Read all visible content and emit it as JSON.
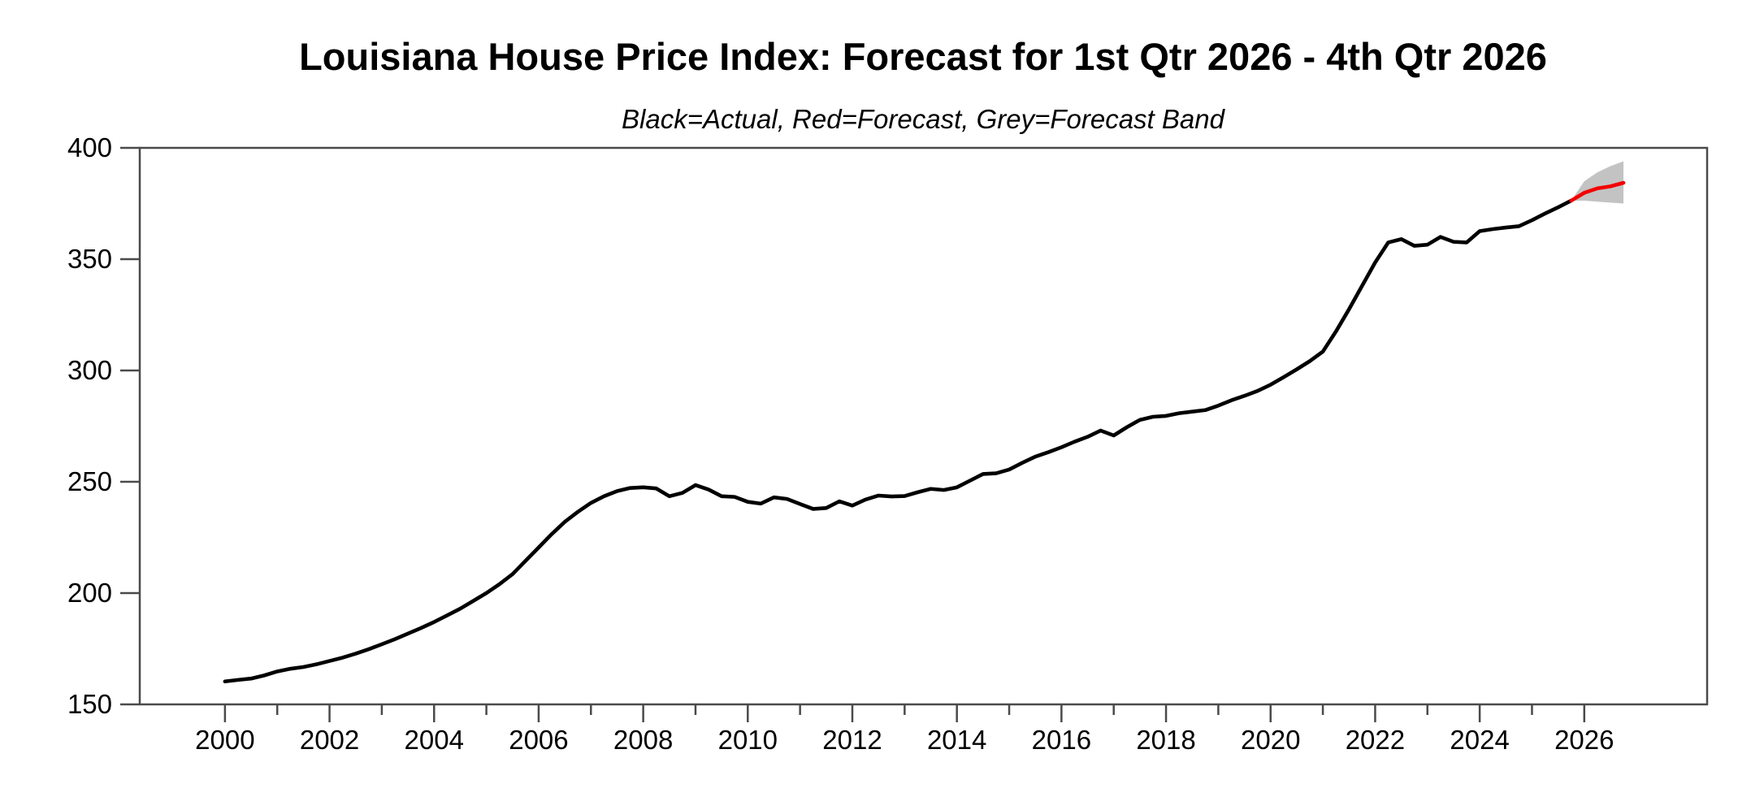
{
  "chart_data": {
    "type": "line",
    "title": "Louisiana House Price Index: Forecast for 1st Qtr 2026 - 4th Qtr 2026",
    "subtitle": "Black=Actual, Red=Forecast, Grey=Forecast Band",
    "legend_meaning": {
      "black": "Actual",
      "red": "Forecast",
      "grey": "Forecast Band"
    },
    "colors": {
      "actual": "#000000",
      "forecast": "#f40000",
      "band": "#c3c3c3",
      "axis": "#4a4a4a",
      "background": "#ffffff"
    },
    "grid": false,
    "x_axis": {
      "min": 1998.37,
      "max": 2028.35,
      "major_ticks": [
        2000,
        2002,
        2004,
        2006,
        2008,
        2010,
        2012,
        2014,
        2016,
        2018,
        2020,
        2022,
        2024,
        2026
      ],
      "major_labels": [
        "2000",
        "2002",
        "2004",
        "2006",
        "2008",
        "2010",
        "2012",
        "2014",
        "2016",
        "2018",
        "2020",
        "2022",
        "2024",
        "2026"
      ],
      "minor_ticks": [
        2001,
        2003,
        2005,
        2007,
        2009,
        2011,
        2013,
        2015,
        2017,
        2019,
        2021,
        2023,
        2025
      ]
    },
    "y_axis": {
      "min": 150,
      "max": 400,
      "ticks": [
        150,
        200,
        250,
        300,
        350,
        400
      ],
      "tick_labels": [
        "150",
        "200",
        "250",
        "300",
        "350",
        "400"
      ]
    },
    "frequency": "quarterly",
    "series": [
      {
        "name": "Actual",
        "period_start": "2000Q1",
        "period_end": "2025Q4",
        "start_year": 2000.0,
        "step": 0.25,
        "values": [
          160.3,
          161.0,
          161.6,
          163.0,
          164.8,
          166.0,
          166.8,
          168.0,
          169.5,
          171.0,
          172.8,
          174.8,
          177.0,
          179.3,
          181.8,
          184.3,
          187.0,
          190.0,
          193.0,
          196.5,
          200.0,
          204.0,
          208.5,
          214.5,
          220.5,
          226.5,
          232.0,
          236.5,
          240.5,
          243.5,
          245.8,
          247.2,
          247.5,
          247.0,
          243.5,
          245.0,
          248.5,
          246.5,
          243.5,
          243.2,
          241.0,
          240.2,
          243.0,
          242.3,
          240.0,
          237.8,
          238.2,
          241.2,
          239.3,
          242.0,
          243.8,
          243.4,
          243.6,
          245.3,
          246.8,
          246.3,
          247.5,
          250.5,
          253.5,
          253.8,
          255.5,
          258.5,
          261.3,
          263.3,
          265.5,
          268.0,
          270.2,
          273.0,
          270.8,
          274.5,
          277.8,
          279.2,
          279.6,
          280.8,
          281.5,
          282.2,
          284.2,
          286.6,
          288.6,
          290.8,
          293.6,
          297.0,
          300.5,
          304.2,
          308.5,
          317.5,
          327.5,
          338.0,
          348.5,
          357.5,
          359.0,
          356.0,
          356.5,
          360.0,
          357.8,
          357.5,
          362.6,
          363.5,
          364.2,
          364.8,
          367.5,
          370.5,
          373.3,
          376.3
        ]
      },
      {
        "name": "Forecast",
        "period_start": "2025Q4",
        "period_end": "2026Q4",
        "start_year": 2025.75,
        "step": 0.25,
        "values": [
          376.3,
          379.8,
          381.8,
          382.7,
          384.3
        ]
      }
    ],
    "band": {
      "name": "Forecast Band",
      "period_start": "2025Q4",
      "period_end": "2026Q4",
      "start_year": 2025.75,
      "step": 0.25,
      "upper": [
        376.3,
        385.0,
        389.0,
        391.8,
        394.0
      ],
      "lower": [
        376.3,
        376.3,
        375.8,
        375.4,
        375.0
      ]
    }
  }
}
